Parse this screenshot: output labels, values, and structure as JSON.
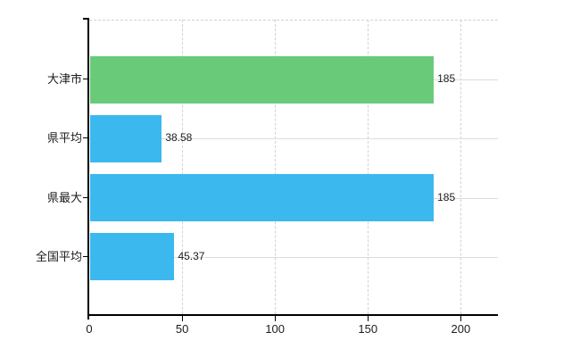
{
  "chart_data": {
    "type": "bar",
    "orientation": "horizontal",
    "title": "",
    "categories": [
      "大津市",
      "県平均",
      "県最大",
      "全国平均"
    ],
    "values": [
      185,
      38.58,
      185,
      45.37
    ],
    "value_labels": [
      "185",
      "38.58",
      "185",
      "45.37"
    ],
    "bar_colors": [
      "#69cb7a",
      "#3bb9ee",
      "#3bb9ee",
      "#3bb9ee"
    ],
    "xticks": [
      0,
      50,
      100,
      150,
      200
    ],
    "xtick_labels": [
      "0",
      "50",
      "100",
      "150",
      "200"
    ],
    "xlim": [
      0,
      220
    ],
    "grid": {
      "vertical": "dashed",
      "horizontal": "solid",
      "color": "#d8d8d5"
    },
    "axis_color": "#000000",
    "text_color": "#1c1c1c",
    "legend": "none",
    "background": "#ffffff"
  }
}
